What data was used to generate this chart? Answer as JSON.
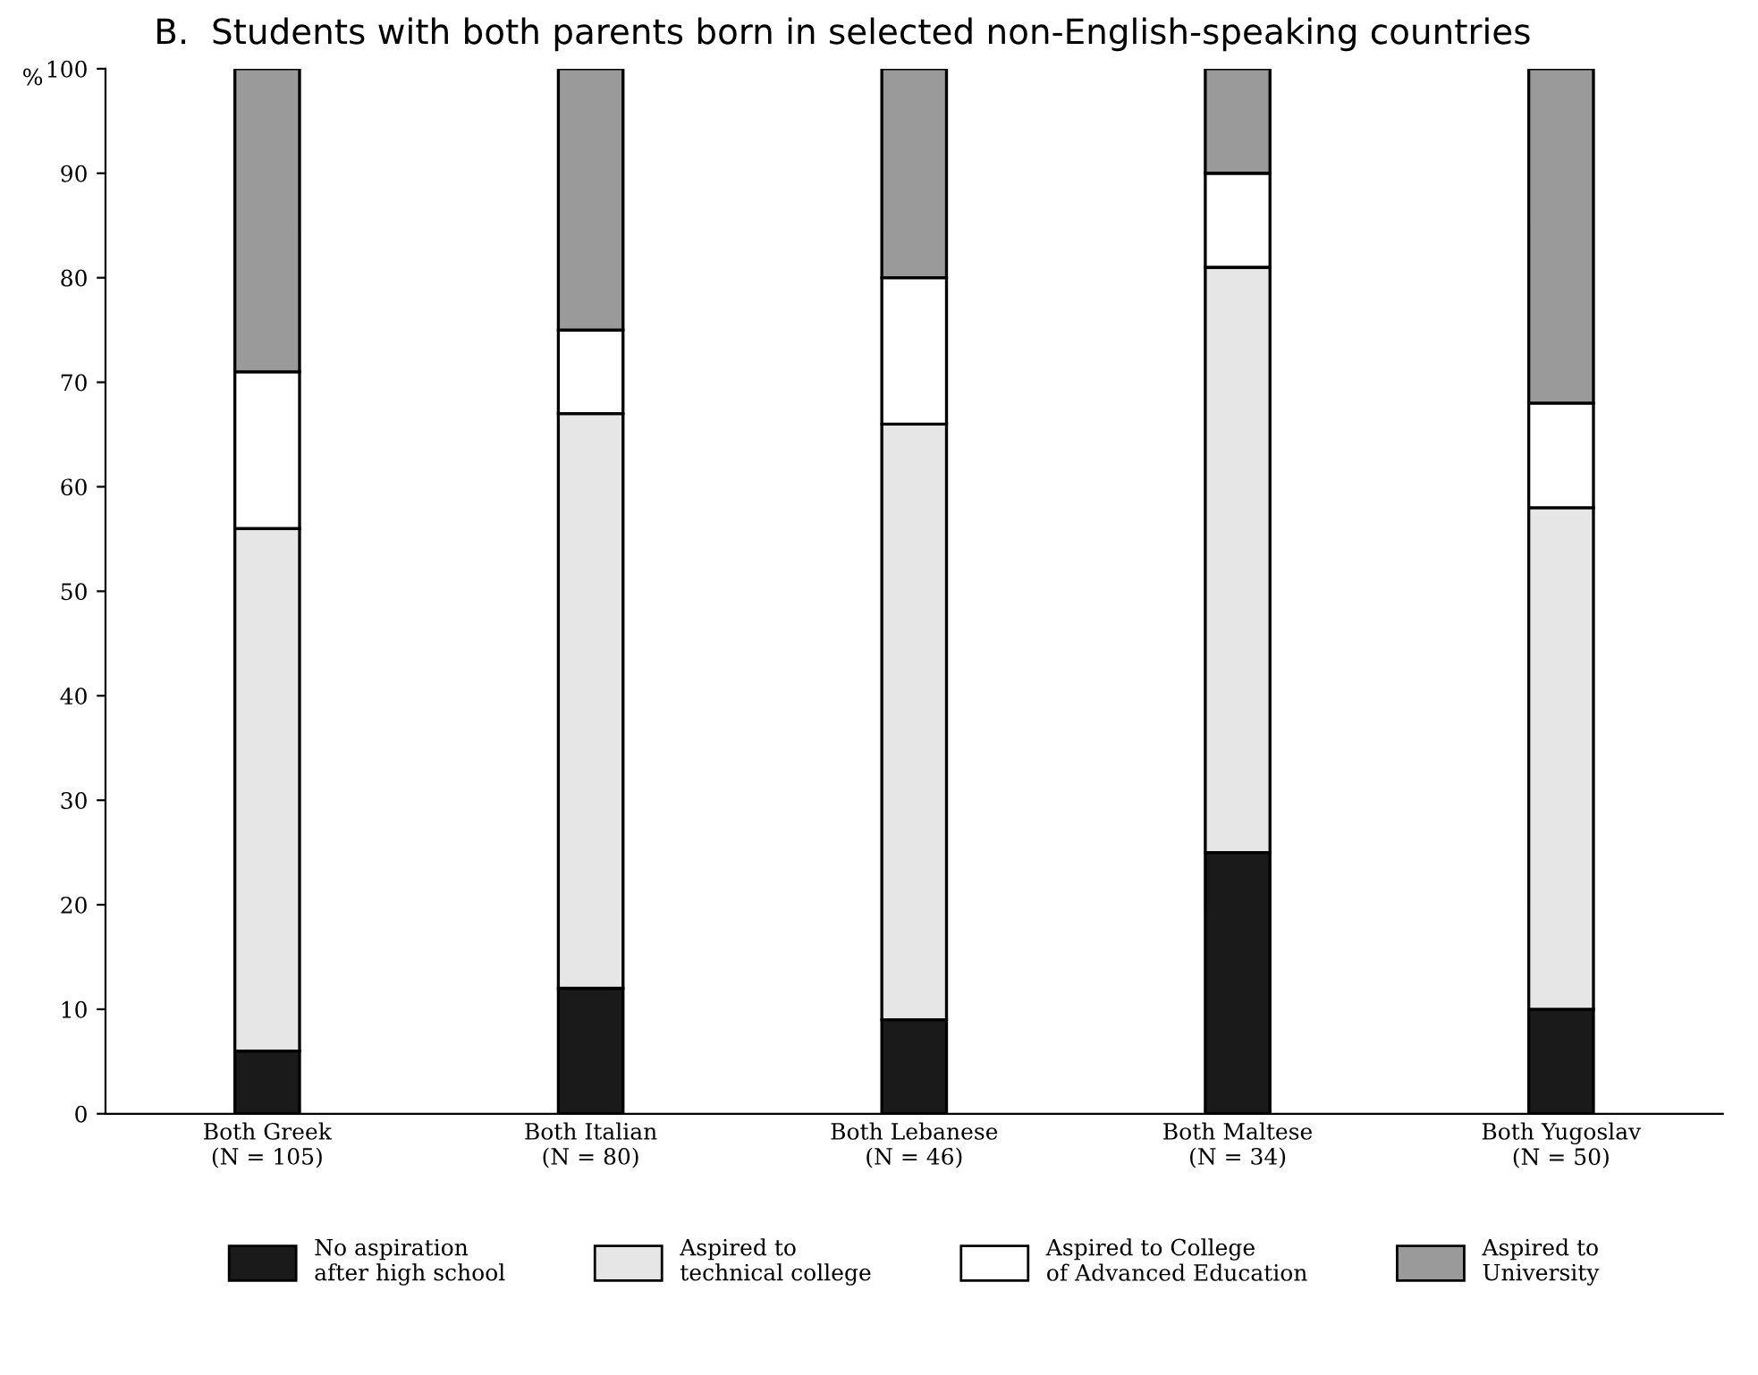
{
  "chart_data": {
    "type": "bar",
    "stacked": true,
    "title": "B.  Students with both parents born in selected non-English-speaking countries",
    "ylabel": "%",
    "categories": [
      "Both Greek\n(N = 105)",
      "Both Italian\n(N = 80)",
      "Both Lebanese\n(N = 46)",
      "Both Maltese\n(N = 34)",
      "Both Yugoslav\n(N = 50)"
    ],
    "series": [
      {
        "name": "No aspiration\nafter high school",
        "color": "#1a1a1a",
        "values": [
          6,
          12,
          9,
          25,
          10
        ]
      },
      {
        "name": "Aspired to\ntechnical college",
        "color": "#e6e6e6",
        "values": [
          50,
          55,
          57,
          56,
          48
        ]
      },
      {
        "name": "Aspired to College\nof Advanced Education",
        "color": "#ffffff",
        "values": [
          15,
          8,
          14,
          9,
          10
        ]
      },
      {
        "name": "Aspired to\nUniversity",
        "color": "#9a9a9a",
        "values": [
          29,
          25,
          20,
          10,
          32
        ]
      }
    ],
    "ylim": [
      0,
      100
    ],
    "yticks": [
      0,
      10,
      20,
      30,
      40,
      50,
      60,
      70,
      80,
      90,
      100
    ],
    "grid": false,
    "legend": "bottom"
  }
}
